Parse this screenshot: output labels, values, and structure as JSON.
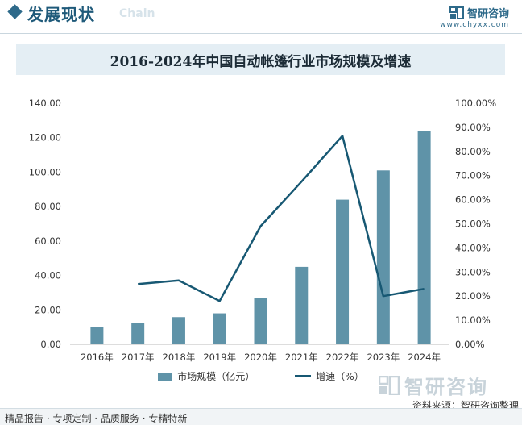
{
  "header": {
    "title": "发展现状",
    "subtitle": "Chain",
    "brand_name": "智研咨询",
    "brand_url": "www.chyxx.com"
  },
  "chart_title": "2016-2024年中国自动帐篷行业市场规模及增速",
  "legend": {
    "bar_label": "市场规模（亿元）",
    "line_label": "增速（%）"
  },
  "footer": {
    "left_text": "精品报告 · 专项定制 · 品质服务 · 专精特新",
    "source": "资料来源：智研咨询整理",
    "logo_text": "智研咨询"
  },
  "colors": {
    "bar": "#5f93a8",
    "line": "#175873",
    "accent": "#1f5a7a"
  },
  "chart_data": {
    "type": "bar+line",
    "title": "2016-2024年中国自动帐篷行业市场规模及增速",
    "categories": [
      "2016年",
      "2017年",
      "2018年",
      "2019年",
      "2020年",
      "2021年",
      "2022年",
      "2023年",
      "2024年"
    ],
    "series": [
      {
        "name": "市场规模（亿元）",
        "type": "bar",
        "axis": "left",
        "values": [
          10.0,
          12.5,
          15.8,
          18.0,
          26.8,
          45.0,
          84.0,
          101.0,
          124.0
        ]
      },
      {
        "name": "增速（%）",
        "type": "line",
        "axis": "right",
        "values": [
          null,
          25.0,
          26.5,
          18.0,
          49.0,
          67.5,
          86.5,
          20.0,
          23.0
        ]
      }
    ],
    "y_left": {
      "min": 0,
      "max": 140,
      "step": 20,
      "tick_labels": [
        "0.00",
        "20.00",
        "40.00",
        "60.00",
        "80.00",
        "100.00",
        "120.00",
        "140.00"
      ]
    },
    "y_right": {
      "min": 0,
      "max": 100,
      "step": 10,
      "tick_labels": [
        "0.00%",
        "10.00%",
        "20.00%",
        "30.00%",
        "40.00%",
        "50.00%",
        "60.00%",
        "70.00%",
        "80.00%",
        "90.00%",
        "100.00%"
      ]
    },
    "grid": false,
    "legend_position": "bottom"
  }
}
